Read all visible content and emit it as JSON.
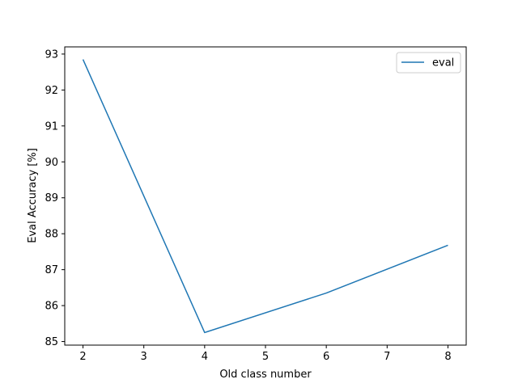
{
  "chart_data": {
    "type": "line",
    "title": "",
    "xlabel": "Old class number",
    "ylabel": "Eval Accuracy [%]",
    "xlim": [
      1.7,
      8.3
    ],
    "ylim": [
      84.9,
      93.2
    ],
    "xticks": [
      2,
      3,
      4,
      5,
      6,
      7,
      8
    ],
    "yticks": [
      85,
      86,
      87,
      88,
      89,
      90,
      91,
      92,
      93
    ],
    "grid": false,
    "legend_position": "top-right",
    "series": [
      {
        "name": "eval",
        "color": "#1f77b4",
        "x": [
          2,
          4,
          6,
          8
        ],
        "y": [
          92.85,
          85.25,
          86.35,
          87.68
        ]
      }
    ]
  }
}
